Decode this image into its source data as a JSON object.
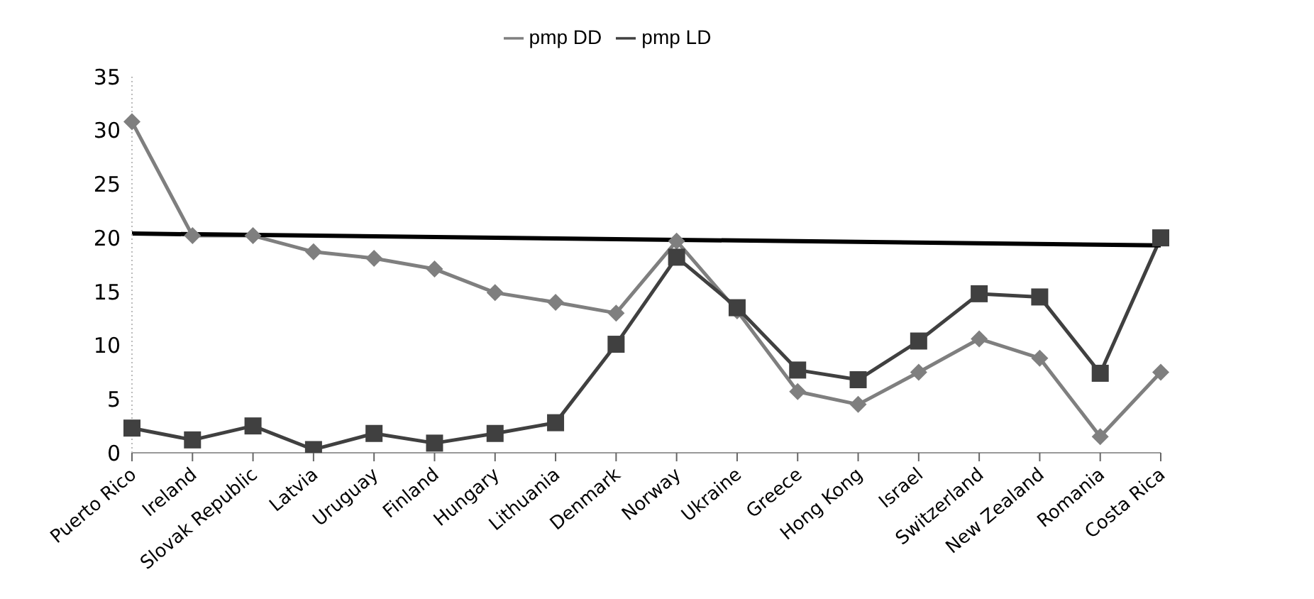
{
  "chart_data": {
    "type": "line",
    "categories": [
      "Puerto Rico",
      "Ireland",
      "Slovak Republic",
      "Latvia",
      "Uruguay",
      "Finland",
      "Hungary",
      "Lithuania",
      "Denmark",
      "Norway",
      "Ukraine",
      "Greece",
      "Hong Kong",
      "Israel",
      "Switzerland",
      "New Zealand",
      "Romania",
      "Costa Rica"
    ],
    "series": [
      {
        "name": "pmp DD",
        "color": "#7f7f7f",
        "marker": "diamond",
        "values": [
          30.8,
          20.2,
          20.2,
          18.7,
          18.1,
          17.1,
          14.9,
          14.0,
          13.0,
          19.7,
          13.2,
          5.7,
          4.5,
          7.5,
          10.6,
          8.8,
          1.5,
          7.5
        ]
      },
      {
        "name": "pmp LD",
        "color": "#404040",
        "marker": "square",
        "values": [
          2.3,
          1.2,
          2.5,
          0.3,
          1.8,
          0.9,
          1.8,
          2.8,
          10.1,
          18.2,
          13.5,
          7.7,
          6.8,
          10.4,
          14.8,
          14.5,
          7.4,
          20.0
        ]
      },
      {
        "color": "#000000",
        "marker": "none",
        "values": [
          20.4,
          null,
          null,
          null,
          null,
          null,
          null,
          null,
          null,
          null,
          null,
          null,
          null,
          null,
          null,
          null,
          null,
          19.3
        ]
      }
    ],
    "ylim": [
      0,
      35
    ],
    "yticks": [
      0,
      5,
      10,
      15,
      20,
      25,
      30,
      35
    ],
    "grid": false,
    "legend": "top"
  }
}
